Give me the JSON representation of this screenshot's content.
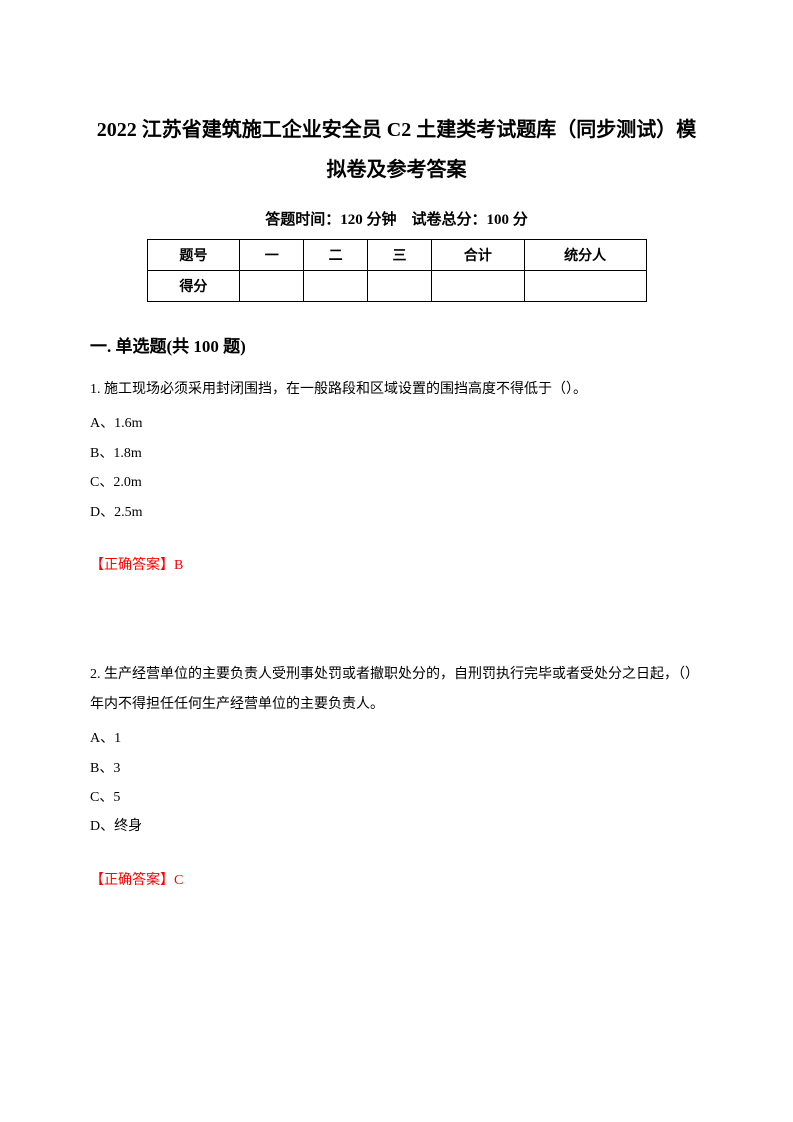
{
  "title": "2022 江苏省建筑施工企业安全员 C2 土建类考试题库（同步测试）模拟卷及参考答案",
  "exam_info": "答题时间：120 分钟　试卷总分：100 分",
  "table": {
    "row1": [
      "题号",
      "一",
      "二",
      "三",
      "合计",
      "统分人"
    ],
    "row2": [
      "得分",
      "",
      "",
      "",
      "",
      ""
    ]
  },
  "section_title": "一. 单选题(共 100 题)",
  "q1": {
    "text": "1. 施工现场必须采用封闭围挡，在一般路段和区域设置的围挡高度不得低于（）。",
    "optA": "A、1.6m",
    "optB": "B、1.8m",
    "optC": "C、2.0m",
    "optD": "D、2.5m",
    "answer_label": "【正确答案】",
    "answer_letter": "B"
  },
  "q2": {
    "text": "2. 生产经营单位的主要负责人受刑事处罚或者撤职处分的，自刑罚执行完毕或者受处分之日起，（）年内不得担任任何生产经营单位的主要负责人。",
    "optA": "A、1",
    "optB": "B、3",
    "optC": "C、5",
    "optD": "D、终身",
    "answer_label": "【正确答案】",
    "answer_letter": "C"
  }
}
